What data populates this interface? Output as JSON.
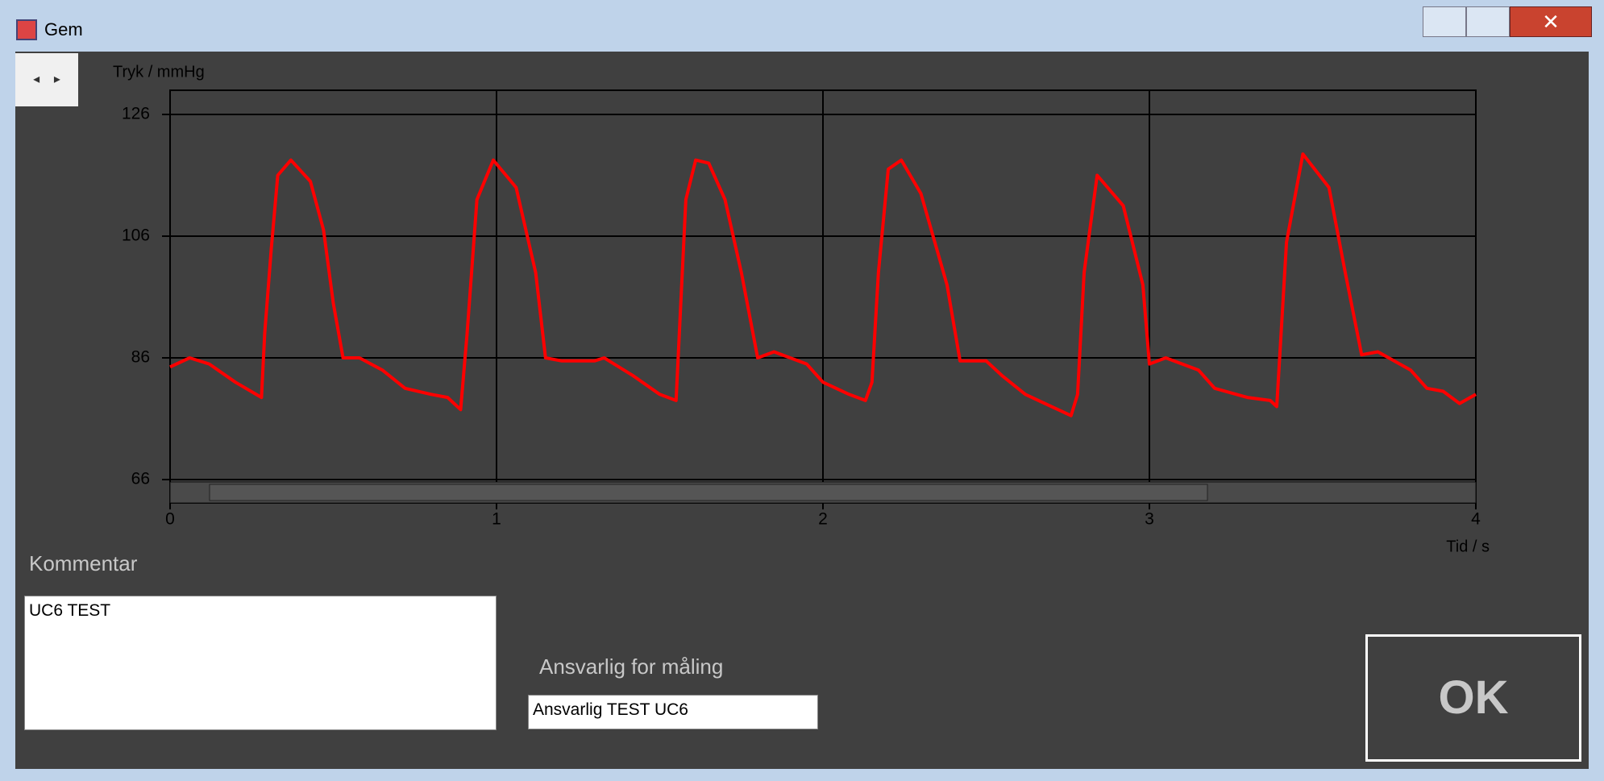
{
  "window": {
    "title": "Gem"
  },
  "chart_data": {
    "type": "line",
    "ylabel": "Tryk / mmHg",
    "xlabel": "Tid / s",
    "xlim": [
      0,
      4
    ],
    "ylim": [
      66,
      126
    ],
    "xticks": [
      0,
      1,
      2,
      3,
      4
    ],
    "yticks": [
      66,
      86,
      106,
      126
    ],
    "grid": true,
    "x": [
      0,
      0.06,
      0.12,
      0.2,
      0.28,
      0.29,
      0.31,
      0.33,
      0.37,
      0.43,
      0.47,
      0.5,
      0.53,
      0.58,
      0.65,
      0.72,
      0.8,
      0.85,
      0.89,
      0.91,
      0.94,
      0.99,
      1.06,
      1.12,
      1.15,
      1.2,
      1.3,
      1.33,
      1.42,
      1.5,
      1.55,
      1.56,
      1.58,
      1.61,
      1.65,
      1.7,
      1.75,
      1.8,
      1.85,
      1.95,
      2.0,
      2.08,
      2.13,
      2.15,
      2.17,
      2.2,
      2.24,
      2.3,
      2.38,
      2.42,
      2.5,
      2.55,
      2.62,
      2.7,
      2.76,
      2.78,
      2.8,
      2.84,
      2.92,
      2.98,
      3.0,
      3.05,
      3.15,
      3.2,
      3.3,
      3.37,
      3.39,
      3.42,
      3.47,
      3.55,
      3.6,
      3.65,
      3.7,
      3.8,
      3.85,
      3.9,
      3.95,
      4.0
    ],
    "series": [
      {
        "name": "Tryk",
        "color": "#ff0000",
        "values": [
          84.5,
          86,
          85,
          82,
          79.5,
          90,
          104,
          116,
          118.5,
          115,
          107,
          95,
          86,
          86,
          84,
          81,
          80,
          79.5,
          77.5,
          90,
          112,
          118.5,
          114,
          100,
          86,
          85.5,
          85.5,
          86,
          83,
          80,
          79,
          90,
          112,
          118.5,
          118,
          112,
          100,
          86,
          87,
          85,
          82,
          80,
          79,
          82,
          100,
          117,
          118.5,
          113,
          98,
          85.5,
          85.5,
          83,
          80,
          78,
          76.5,
          80,
          100,
          116,
          111,
          98,
          85,
          86,
          84,
          81,
          79.5,
          79,
          78,
          105,
          119.5,
          114,
          100,
          86.5,
          87,
          84,
          81,
          80.5,
          78.5,
          80
        ]
      }
    ]
  },
  "form": {
    "comment_label": "Kommentar",
    "comment_value": "UC6 TEST",
    "responsible_label": "Ansvarlig for måling",
    "responsible_value": "Ansvarlig TEST UC6",
    "ok_button": "OK"
  }
}
